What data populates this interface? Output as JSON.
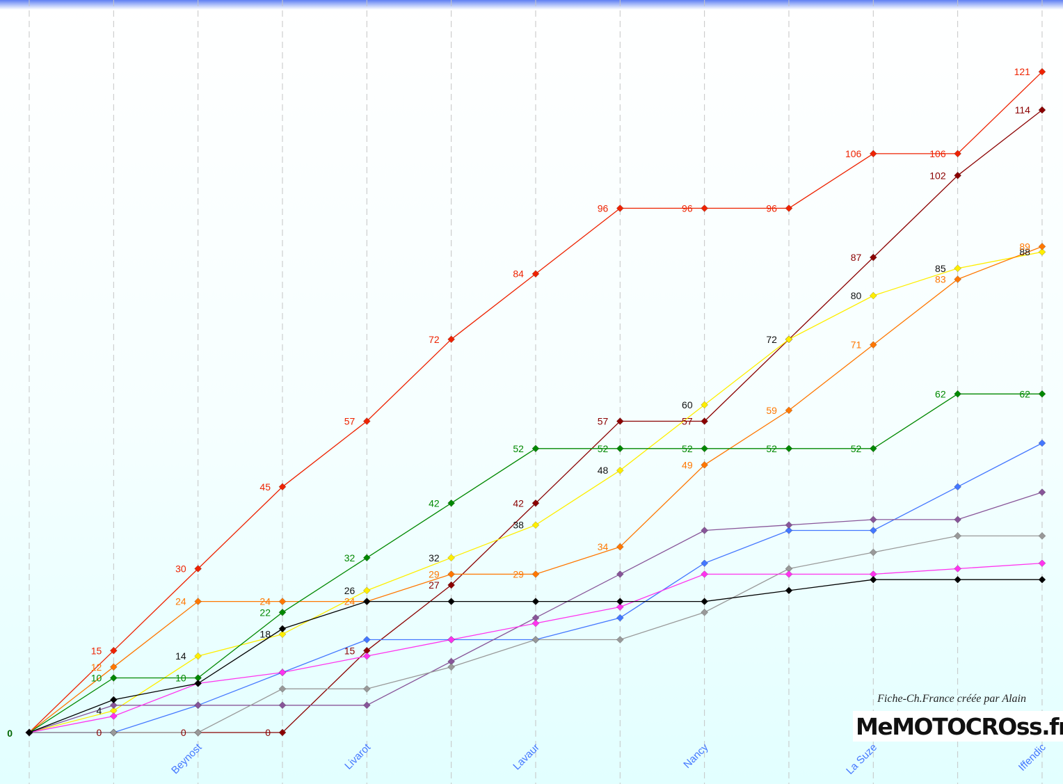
{
  "chart_data": {
    "type": "line",
    "title": "",
    "xlabel": "",
    "ylabel": "",
    "ylim": [
      0,
      121
    ],
    "grid": "vertical dashed",
    "x_labels": [
      "",
      "",
      "Beynost",
      "",
      "Livarot",
      "",
      "Lavaur",
      "",
      "Nancy",
      "",
      "La Suze",
      "",
      "Iffendic"
    ],
    "start_label": "0",
    "series": [
      {
        "color": "#ee2200",
        "values": [
          0,
          15,
          30,
          45,
          57,
          72,
          84,
          96,
          96,
          96,
          106,
          106,
          121
        ],
        "labels": [
          null,
          "15",
          "30",
          "45",
          "57",
          "72",
          "84",
          "96",
          "96",
          "96",
          "106",
          "106",
          "121"
        ],
        "label_color": "#ee2200"
      },
      {
        "color": "#8b0000",
        "values": [
          0,
          0,
          0,
          0,
          15,
          27,
          42,
          57,
          57,
          72,
          87,
          102,
          114
        ],
        "labels": [
          null,
          "0",
          "0",
          "0",
          "15",
          "27",
          "42",
          "57",
          "57",
          null,
          "87",
          "102",
          "114"
        ],
        "label_color": "#8b0000"
      },
      {
        "color": "#ffee00",
        "values": [
          0,
          4,
          14,
          18,
          26,
          32,
          38,
          48,
          60,
          72,
          80,
          85,
          88
        ],
        "labels": [
          null,
          "4",
          "14",
          "18",
          "26",
          "32",
          "38",
          "48",
          "60",
          "72",
          "80",
          "85",
          "88"
        ],
        "label_color": "#111111"
      },
      {
        "color": "#ff7700",
        "values": [
          0,
          12,
          24,
          24,
          24,
          29,
          29,
          34,
          49,
          59,
          71,
          83,
          89
        ],
        "labels": [
          null,
          "12",
          "24",
          "24",
          "24",
          "29",
          "29",
          "34",
          "49",
          "59",
          "71",
          "83",
          "89"
        ],
        "label_color": "#ff7700"
      },
      {
        "color": "#008800",
        "values": [
          0,
          10,
          10,
          22,
          32,
          42,
          52,
          52,
          52,
          52,
          52,
          62,
          62
        ],
        "labels": [
          null,
          "10",
          "10",
          "22",
          "32",
          "42",
          "52",
          "52",
          "52",
          "52",
          "52",
          "62",
          "62"
        ],
        "label_color": "#008800"
      },
      {
        "color": "#4477ff",
        "values": [
          0,
          0,
          5,
          11,
          17,
          17,
          17,
          21,
          31,
          37,
          37,
          45,
          53
        ],
        "labels": []
      },
      {
        "color": "#885599",
        "values": [
          0,
          5,
          5,
          5,
          5,
          13,
          21,
          29,
          37,
          38,
          39,
          39,
          44
        ],
        "labels": []
      },
      {
        "color": "#999999",
        "values": [
          0,
          0,
          0,
          8,
          8,
          12,
          17,
          17,
          22,
          30,
          33,
          36,
          36
        ],
        "labels": []
      },
      {
        "color": "#ff33ee",
        "values": [
          0,
          3,
          9,
          11,
          14,
          17,
          20,
          23,
          29,
          29,
          29,
          30,
          31
        ],
        "labels": []
      },
      {
        "color": "#000000",
        "values": [
          0,
          6,
          9,
          19,
          24,
          24,
          24,
          24,
          24,
          26,
          28,
          28,
          28
        ],
        "labels": []
      }
    ]
  },
  "footer": {
    "credit": "Fiche-Ch.France créée par Alain",
    "logo": "MeMOTOCROss.fr"
  }
}
